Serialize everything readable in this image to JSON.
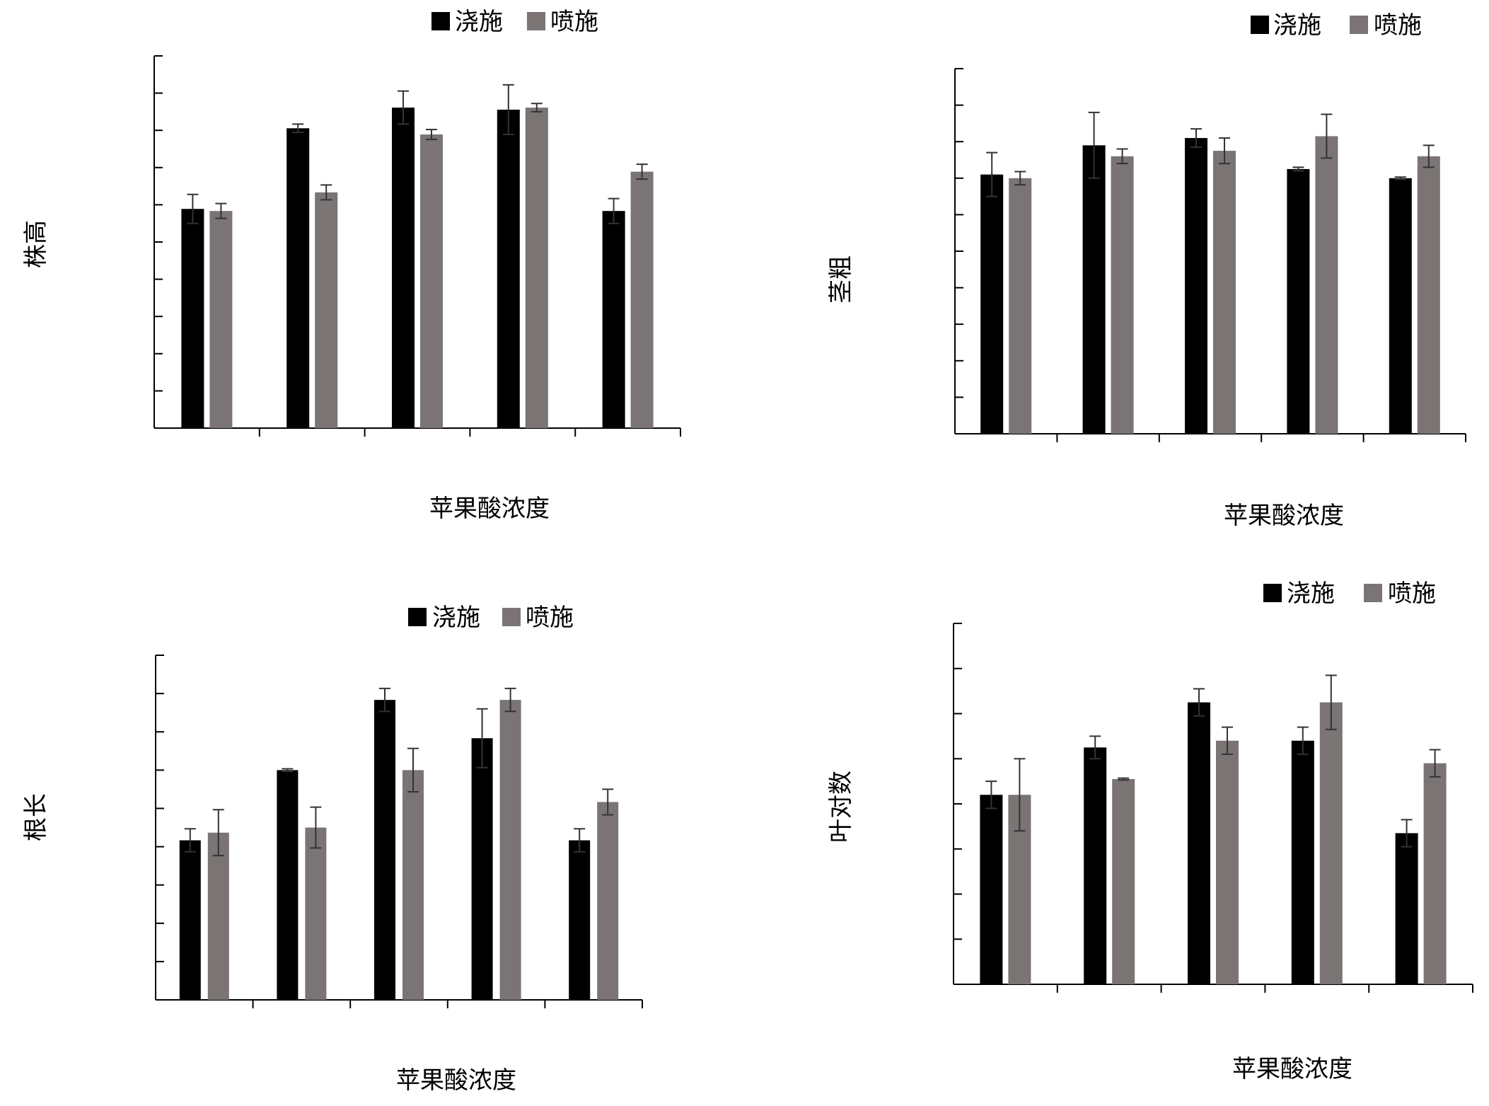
{
  "chart_data": [
    {
      "type": "bar",
      "title": "",
      "xlabel": "苹果酸浓度",
      "ylabel": "株高",
      "categories": [
        "",
        "",
        "",
        "",
        ""
      ],
      "series": [
        {
          "name": "浇施",
          "values": [
            53,
            72.5,
            77.5,
            77,
            52.5
          ],
          "errors": [
            3.5,
            1,
            4,
            6,
            3
          ]
        },
        {
          "name": "喷施",
          "values": [
            52.5,
            57,
            71,
            77.5,
            62
          ],
          "errors": [
            1.8,
            1.8,
            1.2,
            1,
            1.8
          ]
        }
      ],
      "ylim": [
        0,
        90
      ],
      "legend": "top-center",
      "grid": false,
      "colors": {
        "浇施": "#000000",
        "喷施": "#7a7474"
      }
    },
    {
      "type": "bar",
      "title": "",
      "xlabel": "苹果酸浓度",
      "ylabel": "茎粗",
      "categories": [
        "",
        "",
        "",
        "",
        ""
      ],
      "series": [
        {
          "name": "浇施",
          "values": [
            7.1,
            7.9,
            8.1,
            7.25,
            7.0
          ],
          "errors": [
            0.6,
            0.9,
            0.25,
            0.05,
            0.03
          ]
        },
        {
          "name": "喷施",
          "values": [
            7.0,
            7.6,
            7.75,
            8.15,
            7.6
          ],
          "errors": [
            0.18,
            0.2,
            0.35,
            0.6,
            0.3
          ]
        }
      ],
      "ylim": [
        0,
        10
      ],
      "legend": "top-right",
      "grid": false,
      "colors": {
        "浇施": "#000000",
        "喷施": "#7a7474"
      }
    },
    {
      "type": "bar",
      "title": "",
      "xlabel": "苹果酸浓度",
      "ylabel": "根长",
      "categories": [
        "",
        "",
        "",
        "",
        ""
      ],
      "series": [
        {
          "name": "浇施",
          "values": [
            12.5,
            18,
            23.5,
            20.5,
            12.5
          ],
          "errors": [
            0.9,
            0.1,
            0.9,
            2.3,
            0.9
          ]
        },
        {
          "name": "喷施",
          "values": [
            13.1,
            13.5,
            18,
            23.5,
            15.5
          ],
          "errors": [
            1.8,
            1.6,
            1.7,
            0.9,
            1
          ]
        }
      ],
      "ylim": [
        0,
        27
      ],
      "legend": "top-center",
      "grid": false,
      "colors": {
        "浇施": "#000000",
        "喷施": "#7a7474"
      }
    },
    {
      "type": "bar",
      "title": "",
      "xlabel": "苹果酸浓度",
      "ylabel": "叶对数",
      "categories": [
        "",
        "",
        "",
        "",
        ""
      ],
      "series": [
        {
          "name": "浇施",
          "values": [
            4.2,
            5.25,
            6.25,
            5.4,
            3.35
          ],
          "errors": [
            0.3,
            0.25,
            0.3,
            0.3,
            0.3
          ]
        },
        {
          "name": "喷施",
          "values": [
            4.2,
            4.55,
            5.4,
            6.25,
            4.9
          ],
          "errors": [
            0.8,
            0.02,
            0.3,
            0.6,
            0.3
          ]
        }
      ],
      "ylim": [
        0,
        8
      ],
      "legend": "top-right",
      "grid": false,
      "colors": {
        "浇施": "#000000",
        "喷施": "#7a7474"
      }
    }
  ]
}
